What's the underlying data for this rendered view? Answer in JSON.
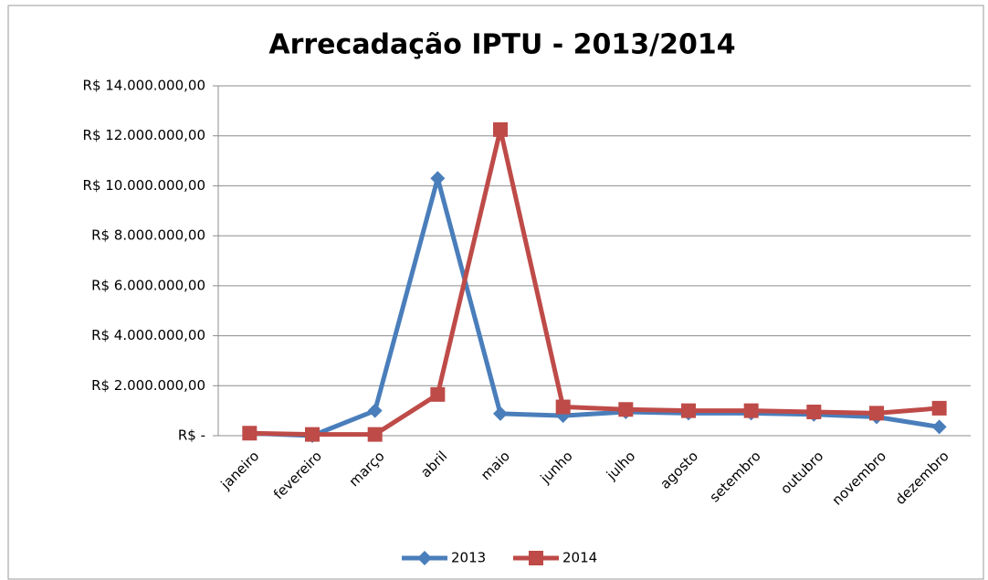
{
  "chart_data": {
    "type": "line",
    "title": "Arrecadação IPTU - 2013/2014",
    "categories": [
      "janeiro",
      "fevereiro",
      "março",
      "abril",
      "maio",
      "junho",
      "julho",
      "agosto",
      "setembro",
      "outubro",
      "novembro",
      "dezembro"
    ],
    "series": [
      {
        "name": "2013",
        "color": "#4a7ebb",
        "marker": "diamond",
        "values": [
          100000,
          0,
          1000000,
          10300000,
          880000,
          800000,
          950000,
          900000,
          900000,
          850000,
          750000,
          350000
        ]
      },
      {
        "name": "2014",
        "color": "#be4b48",
        "marker": "square",
        "values": [
          100000,
          50000,
          50000,
          1650000,
          12250000,
          1150000,
          1050000,
          1000000,
          1000000,
          950000,
          900000,
          1100000
        ]
      }
    ],
    "ylim": [
      0,
      14000000
    ],
    "yticks": [
      {
        "value": 0,
        "label": "R$ -"
      },
      {
        "value": 2000000,
        "label": "R$ 2.000.000,00"
      },
      {
        "value": 4000000,
        "label": "R$ 4.000.000,00"
      },
      {
        "value": 6000000,
        "label": "R$ 6.000.000,00"
      },
      {
        "value": 8000000,
        "label": "R$ 8.000.000,00"
      },
      {
        "value": 10000000,
        "label": "R$ 10.000.000,00"
      },
      {
        "value": 12000000,
        "label": "R$ 12.000.000,00"
      },
      {
        "value": 14000000,
        "label": "R$ 14.000.000,00"
      }
    ],
    "grid": true,
    "legend": "bottom"
  }
}
